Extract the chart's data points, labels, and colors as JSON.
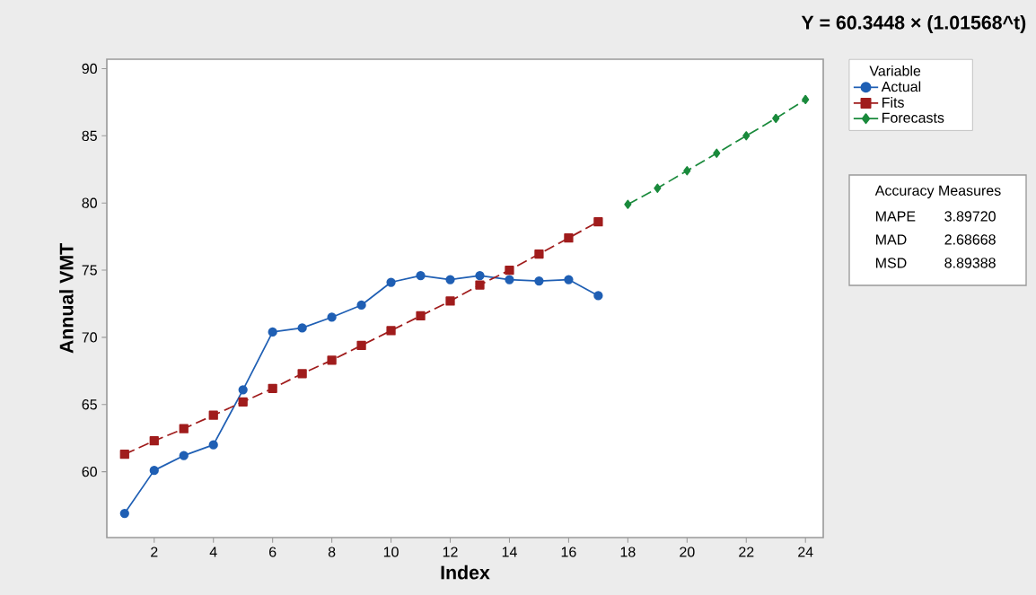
{
  "chart_data": {
    "type": "line",
    "title": "Y = 60.3448 × (1.01568^t)",
    "xlabel": "Index",
    "ylabel": "Annual VMT",
    "legend_title": "Variable",
    "series": [
      {
        "name": "Actual",
        "color": "#1f5fb4",
        "marker": "circle",
        "line_style": "solid",
        "x": [
          1,
          2,
          3,
          4,
          5,
          6,
          7,
          8,
          9,
          10,
          11,
          12,
          13,
          14,
          15,
          16,
          17
        ],
        "values": [
          56.9,
          60.1,
          61.2,
          62.0,
          66.1,
          70.4,
          70.7,
          71.5,
          72.4,
          74.1,
          74.6,
          74.3,
          74.6,
          74.3,
          74.2,
          74.3,
          73.1
        ]
      },
      {
        "name": "Fits",
        "color": "#a01c1c",
        "marker": "square",
        "line_style": "dashed",
        "x": [
          1,
          2,
          3,
          4,
          5,
          6,
          7,
          8,
          9,
          10,
          11,
          12,
          13,
          14,
          15,
          16,
          17
        ],
        "values": [
          61.3,
          62.3,
          63.2,
          64.2,
          65.2,
          66.2,
          67.3,
          68.3,
          69.4,
          70.5,
          71.6,
          72.7,
          73.9,
          75.0,
          76.2,
          77.4,
          78.6
        ]
      },
      {
        "name": "Forecasts",
        "color": "#1a8a3c",
        "marker": "diamond",
        "line_style": "dashed",
        "x": [
          18,
          19,
          20,
          21,
          22,
          23,
          24
        ],
        "values": [
          79.9,
          81.1,
          82.4,
          83.7,
          85.0,
          86.3,
          87.7
        ]
      }
    ],
    "xlim": [
      0.4,
      24.6
    ],
    "ylim": [
      55.1,
      90.7
    ],
    "xticks": [
      2,
      4,
      6,
      8,
      10,
      12,
      14,
      16,
      18,
      20,
      22,
      24
    ],
    "yticks": [
      60,
      65,
      70,
      75,
      80,
      85,
      90
    ],
    "grid": false,
    "legend": "right",
    "annotations": [
      "Accuracy Measures",
      "MAPE",
      "3.89720",
      "MAD",
      "2.68668",
      "MSD",
      "8.89388"
    ]
  }
}
